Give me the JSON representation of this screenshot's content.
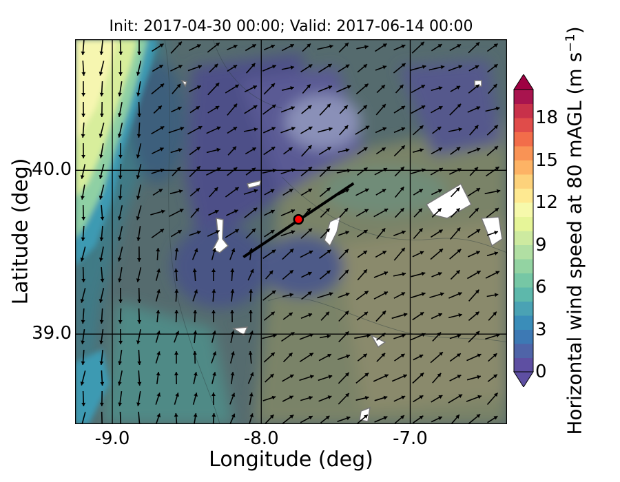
{
  "title": "Init: 2017-04-30 00:00; Valid: 2017-06-14 00:00",
  "map": {
    "xlabel": "Longitude (deg)",
    "ylabel": "Latitude (deg)",
    "xlim": [
      -9.25,
      -6.35
    ],
    "ylim": [
      38.45,
      40.8
    ],
    "xticks": [
      {
        "value": -9.0,
        "label": "-9.0"
      },
      {
        "value": -8.0,
        "label": "-8.0"
      },
      {
        "value": -7.0,
        "label": "-7.0"
      }
    ],
    "yticks": [
      {
        "value": 40.0,
        "label": "40.0"
      },
      {
        "value": 39.0,
        "label": "39.0"
      }
    ],
    "marker": {
      "lon": -7.75,
      "lat": 39.7,
      "color": "#ff0000"
    },
    "transect": {
      "start": [
        -8.12,
        39.47
      ],
      "end": [
        -7.38,
        39.92
      ]
    },
    "wind_direction_deg": 60
  },
  "colorbar": {
    "label_main": "Horizontal wind speed at 80 mAGL (m s",
    "label_sup": "−1",
    "label_close": ")",
    "min": 0,
    "max": 20,
    "extend": "both",
    "ticks": [
      {
        "value": 0,
        "label": "0"
      },
      {
        "value": 3,
        "label": "3"
      },
      {
        "value": 6,
        "label": "6"
      },
      {
        "value": 9,
        "label": "9"
      },
      {
        "value": 12,
        "label": "12"
      },
      {
        "value": 15,
        "label": "15"
      },
      {
        "value": 18,
        "label": "18"
      }
    ],
    "colors": [
      "#5e4fa2",
      "#4f64a8",
      "#3d79b4",
      "#3a8db9",
      "#4aa2b4",
      "#5db8ab",
      "#76c7a5",
      "#93d3a2",
      "#b1dfa3",
      "#cdeaa0",
      "#e6f598",
      "#f6f9ab",
      "#fee991",
      "#fdd27b",
      "#fdb365",
      "#f99355",
      "#f26d4a",
      "#e04c4a",
      "#c8314a",
      "#a8144e"
    ],
    "under_color": "#5e4fa2",
    "over_color": "#9e0142"
  }
}
